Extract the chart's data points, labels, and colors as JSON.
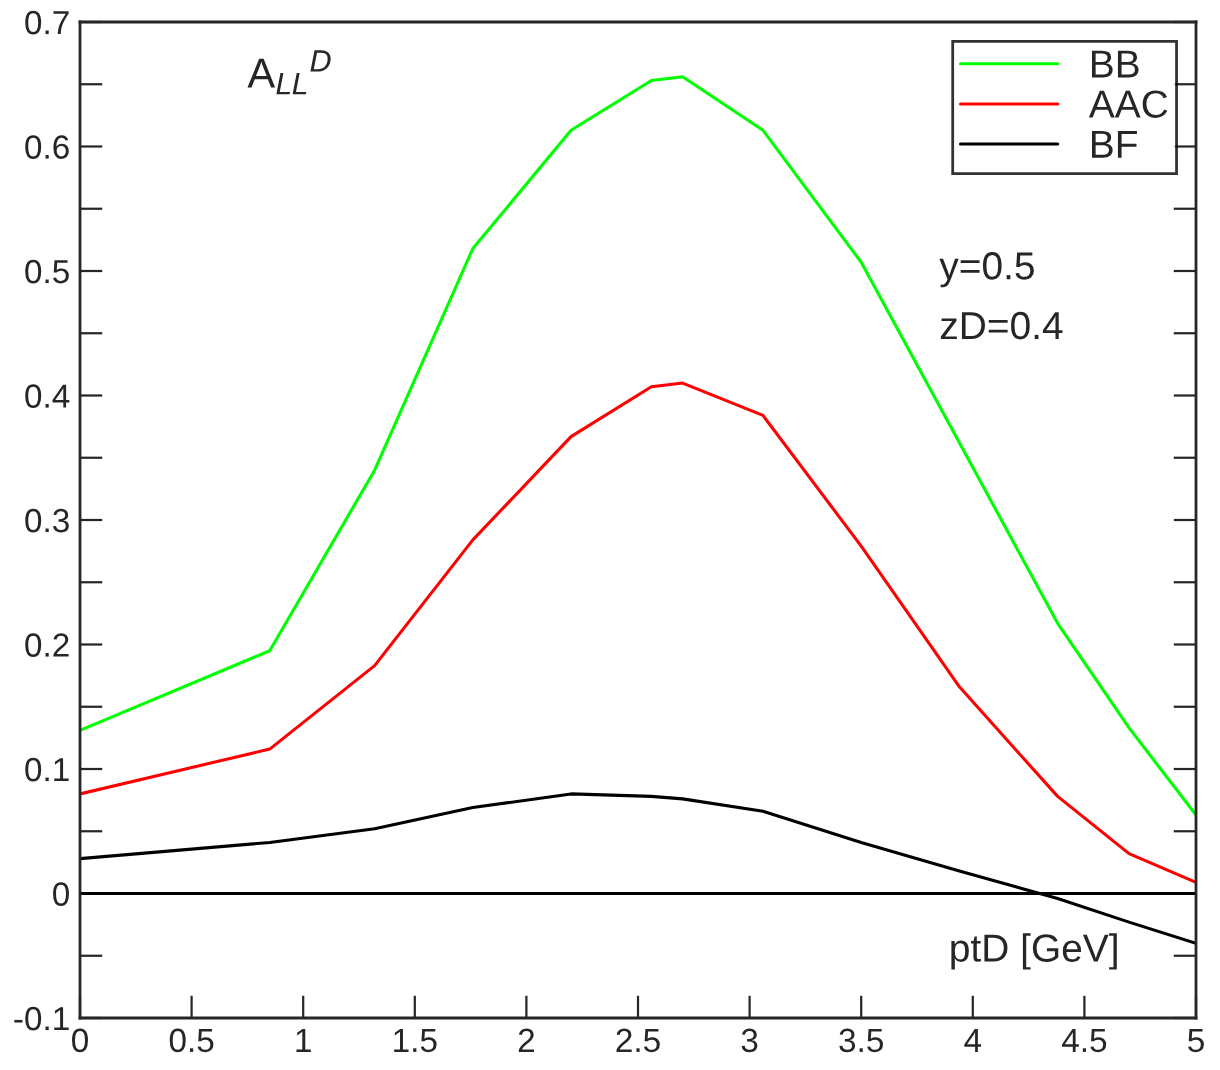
{
  "chart_data": {
    "type": "line",
    "xlabel": "ptD [GeV]",
    "annotations": [
      "A$_{LL}$$^{D}$",
      "y=0.5",
      "zD=0.4"
    ],
    "x": [
      0,
      0.85,
      1.32,
      1.76,
      2.2,
      2.56,
      2.7,
      3.06,
      3.5,
      3.94,
      4.38,
      4.7,
      5
    ],
    "series": [
      {
        "name": "BB",
        "color": "#00ff00",
        "values": [
          0.131,
          0.195,
          0.34,
          0.518,
          0.613,
          0.653,
          0.656,
          0.613,
          0.507,
          0.362,
          0.217,
          0.133,
          0.063
        ]
      },
      {
        "name": "AAC",
        "color": "#ff0000",
        "values": [
          0.08,
          0.116,
          0.183,
          0.284,
          0.367,
          0.407,
          0.41,
          0.384,
          0.279,
          0.166,
          0.078,
          0.032,
          0.009
        ]
      },
      {
        "name": "BF",
        "color": "#000000",
        "values": [
          0.028,
          0.041,
          0.052,
          0.069,
          0.08,
          0.078,
          0.076,
          0.066,
          0.041,
          0.018,
          -0.004,
          -0.023,
          -0.04
        ]
      }
    ],
    "ref_lines": [
      {
        "axis": "y",
        "value": 0,
        "color": "#000000"
      }
    ],
    "xlim": [
      0,
      5
    ],
    "ylim": [
      -0.1,
      0.7
    ],
    "xticks": [
      0,
      0.5,
      1,
      1.5,
      2,
      2.5,
      3,
      3.5,
      4,
      4.5,
      5
    ],
    "yticks": [
      -0.1,
      {
        "value": -0.05,
        "label": null
      },
      0,
      {
        "value": 0.05,
        "label": null
      },
      0.1,
      {
        "value": 0.15,
        "label": null
      },
      0.2,
      {
        "value": 0.25,
        "label": null
      },
      0.3,
      {
        "value": 0.35,
        "label": null
      },
      0.4,
      {
        "value": 0.45,
        "label": null
      },
      0.5,
      {
        "value": 0.55,
        "label": null
      },
      0.6,
      {
        "value": 0.65,
        "label": null
      },
      0.7
    ],
    "grid": false,
    "legend": "top right",
    "marker": "none",
    "line_style": "solid"
  }
}
